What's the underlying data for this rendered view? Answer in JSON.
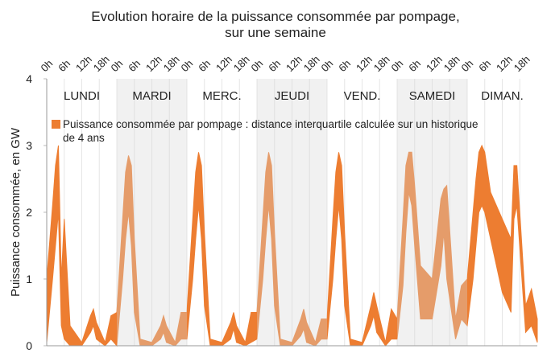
{
  "chart_data": {
    "type": "band",
    "title": [
      "Evolution horaire de la puissance consommée par pompage,",
      "sur une semaine"
    ],
    "y_label": "Puissance consommée, en GW",
    "xlim": [
      0,
      168
    ],
    "ylim": [
      0,
      4
    ],
    "yticks": [
      0,
      1,
      2,
      3,
      4
    ],
    "xticks": [
      {
        "value": 0,
        "label": "0h"
      },
      {
        "value": 6,
        "label": "6h"
      },
      {
        "value": 12,
        "label": "12h"
      },
      {
        "value": 18,
        "label": "18h"
      },
      {
        "value": 24,
        "label": "0h"
      },
      {
        "value": 30,
        "label": "6h"
      },
      {
        "value": 36,
        "label": "12h"
      },
      {
        "value": 42,
        "label": "18h"
      },
      {
        "value": 48,
        "label": "0h"
      },
      {
        "value": 54,
        "label": "6h"
      },
      {
        "value": 60,
        "label": "12h"
      },
      {
        "value": 66,
        "label": "18h"
      },
      {
        "value": 72,
        "label": "0h"
      },
      {
        "value": 78,
        "label": "6h"
      },
      {
        "value": 84,
        "label": "12h"
      },
      {
        "value": 90,
        "label": "18h"
      },
      {
        "value": 96,
        "label": "0h"
      },
      {
        "value": 102,
        "label": "6h"
      },
      {
        "value": 108,
        "label": "12h"
      },
      {
        "value": 114,
        "label": "18h"
      },
      {
        "value": 120,
        "label": "0h"
      },
      {
        "value": 126,
        "label": "6h"
      },
      {
        "value": 132,
        "label": "12h"
      },
      {
        "value": 138,
        "label": "18h"
      },
      {
        "value": 144,
        "label": "0h"
      },
      {
        "value": 150,
        "label": "6h"
      },
      {
        "value": 156,
        "label": "12h"
      },
      {
        "value": 162,
        "label": "18h"
      }
    ],
    "grid": true,
    "days": [
      {
        "name": "LUNDI",
        "shaded": false
      },
      {
        "name": "MARDI",
        "shaded": true
      },
      {
        "name": "MERC.",
        "shaded": false
      },
      {
        "name": "JEUDI",
        "shaded": true
      },
      {
        "name": "VEND.",
        "shaded": false
      },
      {
        "name": "SAMEDI",
        "shaded": true
      },
      {
        "name": "DIMAN.",
        "shaded": false
      }
    ],
    "x": [
      0,
      2,
      3,
      4,
      5,
      6,
      8,
      12,
      15,
      16,
      17,
      20,
      22,
      24,
      26,
      27,
      28,
      29,
      30,
      32,
      36,
      39,
      40,
      41,
      44,
      46,
      48,
      50,
      51,
      52,
      53,
      54,
      56,
      60,
      63,
      64,
      65,
      68,
      70,
      72,
      74,
      75,
      76,
      77,
      78,
      80,
      84,
      87,
      88,
      89,
      92,
      94,
      96,
      98,
      99,
      100,
      101,
      102,
      104,
      108,
      111,
      112,
      113,
      116,
      118,
      120,
      122,
      123,
      124,
      125,
      126,
      128,
      132,
      135,
      136,
      137,
      140,
      142,
      144,
      146,
      147,
      148,
      149,
      150,
      152,
      156,
      159,
      160,
      161,
      164,
      166,
      168
    ],
    "series": [
      {
        "name": "Puissance consommée par pompage : distance interquartile calculée sur un historique de 4 ans",
        "color": "#ed7d31",
        "high": [
          1.0,
          2.1,
          2.7,
          3.0,
          1.0,
          1.9,
          0.3,
          0.05,
          0.45,
          0.55,
          0.35,
          0.05,
          0.45,
          0.5,
          1.9,
          2.6,
          2.85,
          2.7,
          1.6,
          0.1,
          0.05,
          0.3,
          0.45,
          0.3,
          0.05,
          0.5,
          0.5,
          1.9,
          2.6,
          2.9,
          2.7,
          1.7,
          0.1,
          0.05,
          0.35,
          0.5,
          0.3,
          0.05,
          0.5,
          0.5,
          1.9,
          2.6,
          2.9,
          2.7,
          1.7,
          0.1,
          0.05,
          0.4,
          0.55,
          0.35,
          0.05,
          0.4,
          0.4,
          1.9,
          2.6,
          2.9,
          2.7,
          1.7,
          0.1,
          0.05,
          0.6,
          0.8,
          0.6,
          0.05,
          0.55,
          0.4,
          1.9,
          2.7,
          2.9,
          2.9,
          2.4,
          1.2,
          1.0,
          2.2,
          2.35,
          2.4,
          0.4,
          0.9,
          1.0,
          2.0,
          2.5,
          2.9,
          3.0,
          2.9,
          2.3,
          1.9,
          1.6,
          2.7,
          2.7,
          0.6,
          0.85,
          0.4
        ],
        "low": [
          0.05,
          1.0,
          1.5,
          2.0,
          0.3,
          0.1,
          0.0,
          0.0,
          0.2,
          0.3,
          0.1,
          0.0,
          0.1,
          0.0,
          1.0,
          1.6,
          2.0,
          1.5,
          0.5,
          0.0,
          0.0,
          0.1,
          0.2,
          0.05,
          0.0,
          0.1,
          0.1,
          1.0,
          1.6,
          2.1,
          1.6,
          0.6,
          0.0,
          0.0,
          0.1,
          0.25,
          0.05,
          0.0,
          0.05,
          0.1,
          1.0,
          1.6,
          2.1,
          1.6,
          0.6,
          0.0,
          0.0,
          0.15,
          0.25,
          0.05,
          0.0,
          0.1,
          0.1,
          1.0,
          1.6,
          2.1,
          1.6,
          0.6,
          0.0,
          0.0,
          0.3,
          0.45,
          0.2,
          0.0,
          0.1,
          0.1,
          0.9,
          1.7,
          2.3,
          2.1,
          1.5,
          0.4,
          0.4,
          1.2,
          1.7,
          1.0,
          0.1,
          0.4,
          0.3,
          1.0,
          1.5,
          2.0,
          2.1,
          2.0,
          1.6,
          0.8,
          0.5,
          1.9,
          2.1,
          0.2,
          0.3,
          0.05
        ]
      }
    ]
  }
}
